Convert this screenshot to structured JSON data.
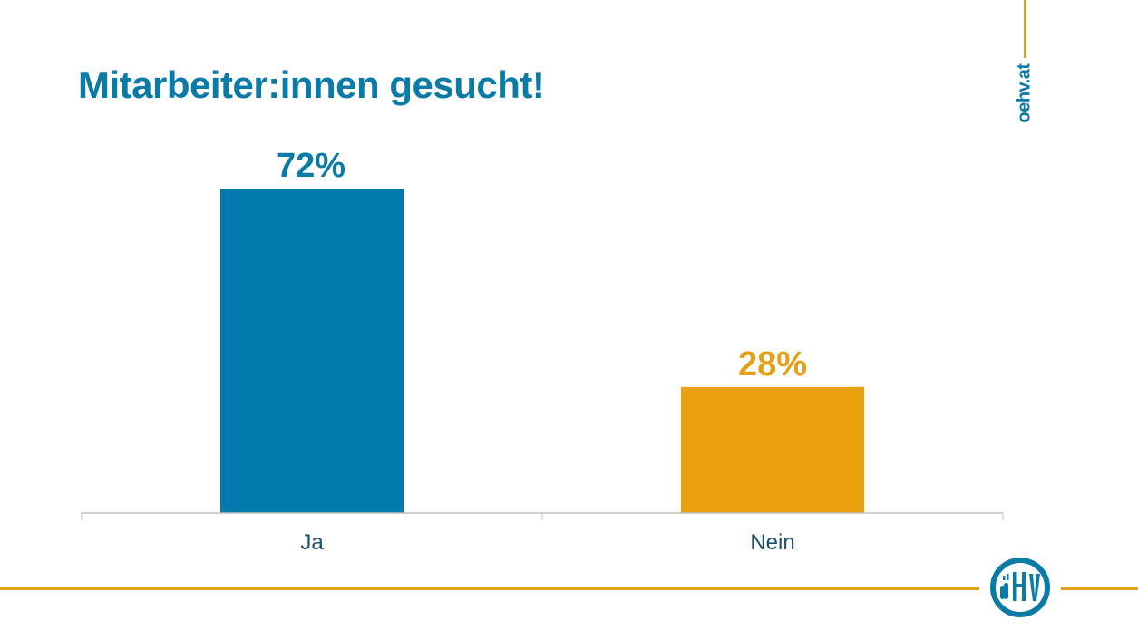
{
  "title": "Mitarbeiter:innen gesucht!",
  "website": "oehv.at",
  "logo_text": "öHV",
  "colors": {
    "brand_blue": "#0a7aa6",
    "accent_gold": "#e5a019",
    "axis": "#c0c0c0"
  },
  "chart_data": {
    "type": "bar",
    "title": "Mitarbeiter:innen gesucht!",
    "categories": [
      "Ja",
      "Nein"
    ],
    "values": [
      72,
      28
    ],
    "labels": [
      "72%",
      "28%"
    ],
    "bar_colors": [
      "#007bab",
      "#eba010"
    ],
    "label_colors": [
      "#0a7aa6",
      "#e5a019"
    ],
    "xlabel": "",
    "ylabel": "",
    "ylim": [
      0,
      72
    ],
    "grid": false,
    "legend": "none"
  }
}
